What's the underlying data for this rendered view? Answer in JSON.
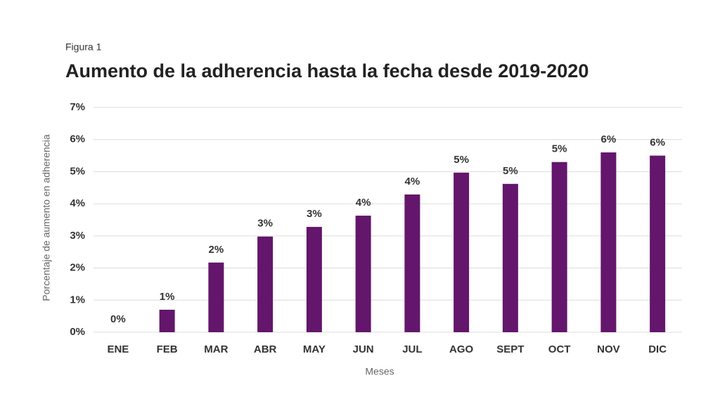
{
  "chart_data": {
    "type": "bar",
    "label": "Figura 1",
    "title": "Aumento de la adherencia hasta la fecha desde 2019-2020",
    "x_label": "Meses",
    "y_label": "Porcentaje de aumento en adherencia",
    "categories": [
      "ENE",
      "FEB",
      "MAR",
      "ABR",
      "MAY",
      "JUN",
      "JUL",
      "AGO",
      "SEPT",
      "OCT",
      "NOV",
      "DIC"
    ],
    "values": [
      0,
      0.7,
      2.17,
      2.98,
      3.28,
      3.63,
      4.29,
      4.97,
      4.62,
      5.3,
      5.6,
      5.5
    ],
    "value_labels": [
      "0%",
      "1%",
      "2%",
      "3%",
      "3%",
      "4%",
      "4%",
      "5%",
      "5%",
      "5%",
      "6%",
      "6%"
    ],
    "color": "#63166b",
    "ylim": [
      0,
      7
    ],
    "yticks": [
      {
        "value": 0,
        "label": "0%"
      },
      {
        "value": 1,
        "label": "1%"
      },
      {
        "value": 2,
        "label": "2%"
      },
      {
        "value": 3,
        "label": "3%"
      },
      {
        "value": 4,
        "label": "4%"
      },
      {
        "value": 5,
        "label": "5%"
      },
      {
        "value": 6,
        "label": "6%"
      },
      {
        "value": 7,
        "label": "7%"
      }
    ],
    "grid": true
  }
}
